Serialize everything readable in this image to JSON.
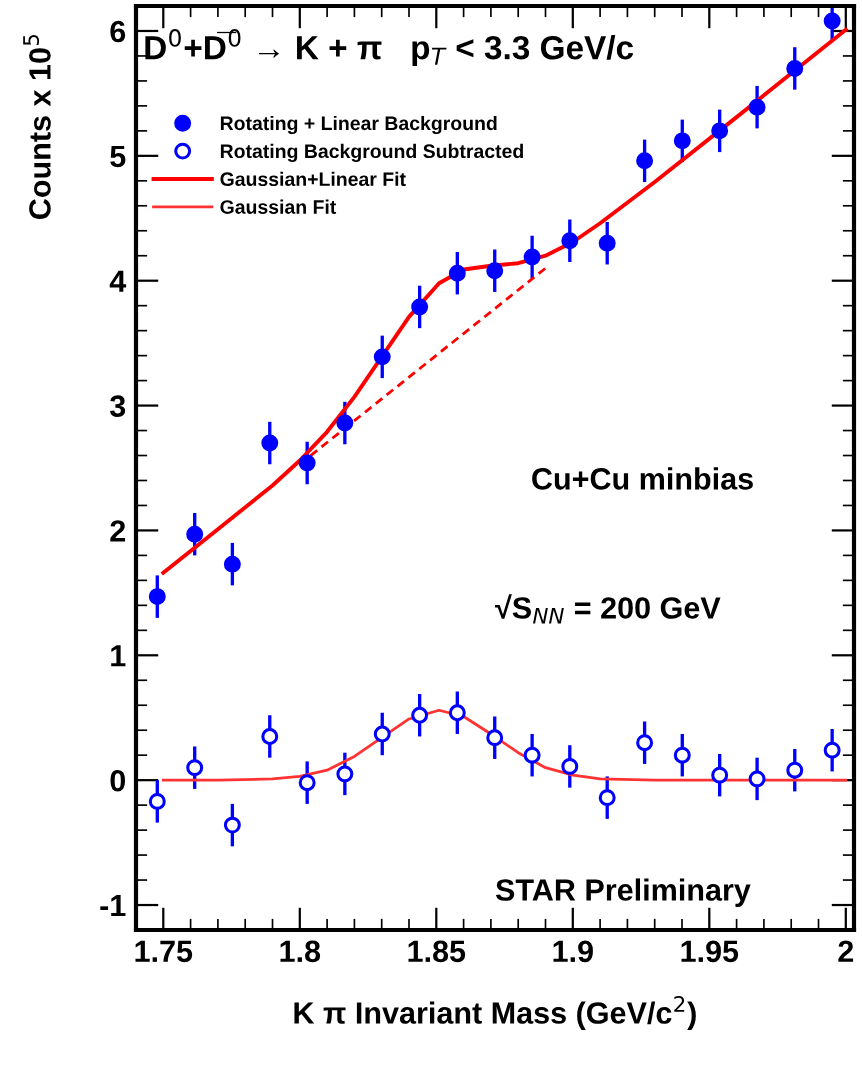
{
  "chart_data": {
    "type": "scatter",
    "xlabel": "K π Invariant Mass (GeV/c$^{2}$)",
    "ylabel": "Counts x 10$^{5}$",
    "xlim": [
      1.74,
      2.003
    ],
    "ylim": [
      -1.2,
      6.2
    ],
    "xticks": [
      1.75,
      1.8,
      1.85,
      1.9,
      1.95,
      {
        "value": 2.0,
        "label": "2"
      }
    ],
    "yticks": [
      -1,
      0,
      1,
      2,
      3,
      4,
      5,
      6
    ],
    "grid": false,
    "legend": "top left",
    "annotations": [
      "D$^{0}$+D̅$^{0}$ → K + π   p$_{T}$ < 3.3 GeV/c",
      "Cu+Cu minbias",
      "√S$_{NN}$ = 200 GeV",
      "STAR Preliminary"
    ],
    "series": [
      {
        "name": "Rotating + Linear Background",
        "marker": "circle",
        "color": "#0000ff",
        "x": [
          1.7478,
          1.7615,
          1.7753,
          1.789,
          1.8027,
          1.8165,
          1.8302,
          1.8439,
          1.8577,
          1.8714,
          1.8851,
          1.8989,
          1.9126,
          1.9263,
          1.9401,
          1.9538,
          1.9675,
          1.9813,
          1.995
        ],
        "values": [
          1.47,
          1.97,
          1.73,
          2.7,
          2.54,
          2.86,
          3.39,
          3.79,
          4.06,
          4.08,
          4.19,
          4.32,
          4.3,
          4.96,
          5.12,
          5.2,
          5.39,
          5.7,
          6.08
        ],
        "errors": [
          0.17,
          0.17,
          0.17,
          0.17,
          0.17,
          0.17,
          0.17,
          0.17,
          0.17,
          0.17,
          0.17,
          0.17,
          0.17,
          0.17,
          0.17,
          0.17,
          0.17,
          0.17,
          0.17
        ]
      },
      {
        "name": "Rotating Background Subtracted",
        "marker": "circle",
        "color": "#0000ff",
        "x": [
          1.7478,
          1.7615,
          1.7753,
          1.789,
          1.8027,
          1.8165,
          1.8302,
          1.8439,
          1.8577,
          1.8714,
          1.8851,
          1.8989,
          1.9126,
          1.9263,
          1.9401,
          1.9538,
          1.9675,
          1.9813,
          1.995
        ],
        "values": [
          -0.17,
          0.1,
          -0.36,
          0.35,
          -0.02,
          0.05,
          0.37,
          0.52,
          0.54,
          0.34,
          0.2,
          0.11,
          -0.14,
          0.3,
          0.2,
          0.04,
          0.01,
          0.08,
          0.24
        ],
        "errors": [
          0.17,
          0.17,
          0.17,
          0.17,
          0.17,
          0.17,
          0.17,
          0.17,
          0.17,
          0.17,
          0.17,
          0.17,
          0.17,
          0.17,
          0.17,
          0.17,
          0.17,
          0.17,
          0.17
        ]
      },
      {
        "name": "Gaussian+Linear Fit",
        "type": "line",
        "color": "#ff0000",
        "line_style": "solid",
        "x": [
          1.75,
          1.77,
          1.79,
          1.8,
          1.81,
          1.82,
          1.83,
          1.84,
          1.851,
          1.86,
          1.87,
          1.88,
          1.89,
          1.9,
          1.91,
          1.93,
          1.96,
          2.0
        ],
        "values": [
          1.66,
          2.01,
          2.36,
          2.56,
          2.79,
          3.07,
          3.39,
          3.71,
          3.98,
          4.09,
          4.12,
          4.14,
          4.2,
          4.31,
          4.46,
          4.79,
          5.31,
          6.01
        ]
      },
      {
        "name": "Gaussian Fit",
        "type": "line",
        "color": "#ff3333",
        "line_style": "solid",
        "x": [
          1.75,
          1.77,
          1.79,
          1.8,
          1.81,
          1.82,
          1.83,
          1.84,
          1.851,
          1.86,
          1.87,
          1.88,
          1.89,
          1.9,
          1.91,
          1.93,
          1.96,
          2.0
        ],
        "values": [
          0,
          0,
          0.01,
          0.03,
          0.08,
          0.19,
          0.34,
          0.49,
          0.56,
          0.51,
          0.37,
          0.22,
          0.1,
          0.04,
          0.01,
          0,
          0,
          0
        ]
      },
      {
        "type": "line",
        "color": "#ff0000",
        "line_style": "dashed",
        "x": [
          1.8,
          1.89
        ],
        "values": [
          2.53,
          4.1
        ]
      }
    ]
  }
}
